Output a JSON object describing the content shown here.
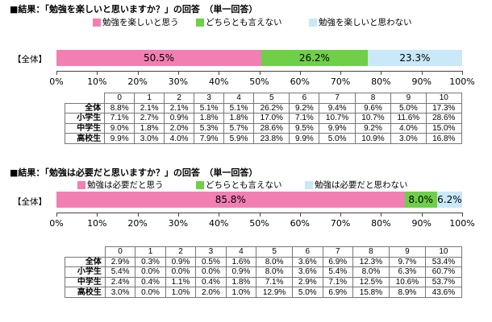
{
  "colors": {
    "positive": "#f27fb2",
    "neutral": "#6fcf48",
    "negative": "#c9e8f8"
  },
  "charts": [
    {
      "title": "■結果：「勉強を楽しいと思いますか？」の回答　（単一回答）",
      "legend": [
        "勉強を楽しいと思う",
        "どちらとも言えない",
        "勉強を楽しいと思わない"
      ],
      "row_label": "【全体】",
      "table_columns": [
        "0",
        "1",
        "2",
        "3",
        "4",
        "5",
        "6",
        "7",
        "8",
        "9",
        "10"
      ],
      "table_rows": [
        {
          "label": "全体",
          "cells": [
            "8.8%",
            "2.1%",
            "2.1%",
            "5.1%",
            "5.1%",
            "26.2%",
            "9.2%",
            "9.4%",
            "9.6%",
            "5.0%",
            "17.3%"
          ]
        },
        {
          "label": "小学生",
          "cells": [
            "7.1%",
            "2.7%",
            "0.9%",
            "1.8%",
            "1.8%",
            "17.0%",
            "7.1%",
            "10.7%",
            "10.7%",
            "11.6%",
            "28.6%"
          ]
        },
        {
          "label": "中学生",
          "cells": [
            "9.0%",
            "1.8%",
            "2.0%",
            "5.3%",
            "5.7%",
            "28.6%",
            "9.5%",
            "9.9%",
            "9.2%",
            "4.0%",
            "15.0%"
          ]
        },
        {
          "label": "高校生",
          "cells": [
            "9.9%",
            "3.0%",
            "4.0%",
            "7.9%",
            "5.9%",
            "23.8%",
            "9.9%",
            "5.0%",
            "10.9%",
            "3.0%",
            "16.8%"
          ]
        }
      ]
    },
    {
      "title": "■結果：「勉強は必要だと思いますか？」の回答　（単一回答）",
      "legend": [
        "勉強は必要だと思う",
        "どちらとも言えない",
        "勉強は必要だと思わない"
      ],
      "row_label": "【全体】",
      "table_columns": [
        "0",
        "1",
        "2",
        "3",
        "4",
        "5",
        "6",
        "7",
        "8",
        "9",
        "10"
      ],
      "table_rows": [
        {
          "label": "全体",
          "cells": [
            "2.9%",
            "0.3%",
            "0.9%",
            "0.5%",
            "1.6%",
            "8.0%",
            "3.6%",
            "6.9%",
            "12.3%",
            "9.7%",
            "53.4%"
          ]
        },
        {
          "label": "小学生",
          "cells": [
            "5.4%",
            "0.0%",
            "0.0%",
            "0.0%",
            "0.9%",
            "8.0%",
            "3.6%",
            "5.4%",
            "8.0%",
            "6.3%",
            "60.7%"
          ]
        },
        {
          "label": "中学生",
          "cells": [
            "2.4%",
            "0.4%",
            "1.1%",
            "0.4%",
            "1.8%",
            "7.1%",
            "2.9%",
            "7.1%",
            "12.5%",
            "10.6%",
            "53.7%"
          ]
        },
        {
          "label": "高校生",
          "cells": [
            "3.0%",
            "0.0%",
            "1.0%",
            "2.0%",
            "1.0%",
            "12.9%",
            "5.0%",
            "6.9%",
            "15.8%",
            "8.9%",
            "43.6%"
          ]
        }
      ]
    }
  ],
  "chart_data": [
    {
      "type": "bar",
      "orientation": "horizontal-stacked",
      "title": "■結果：「勉強を楽しいと思いますか？」の回答　（単一回答）",
      "categories": [
        "【全体】"
      ],
      "series": [
        {
          "name": "勉強を楽しいと思う",
          "values": [
            50.5
          ],
          "label": "50.5%"
        },
        {
          "name": "どちらとも言えない",
          "values": [
            26.2
          ],
          "label": "26.2%"
        },
        {
          "name": "勉強を楽しいと思わない",
          "values": [
            23.3
          ],
          "label": "23.3%"
        }
      ],
      "xlim": [
        0,
        100
      ],
      "xticks": [
        "0%",
        "10%",
        "20%",
        "30%",
        "40%",
        "50%",
        "60%",
        "70%",
        "80%",
        "90%",
        "100%"
      ],
      "legend_position": "top"
    },
    {
      "type": "bar",
      "orientation": "horizontal-stacked",
      "title": "■結果：「勉強は必要だと思いますか？」の回答　（単一回答）",
      "categories": [
        "【全体】"
      ],
      "series": [
        {
          "name": "勉強は必要だと思う",
          "values": [
            85.8
          ],
          "label": "85.8%"
        },
        {
          "name": "どちらとも言えない",
          "values": [
            8.0
          ],
          "label": "8.0%"
        },
        {
          "name": "勉強は必要だと思わない",
          "values": [
            6.2
          ],
          "label": "6.2%"
        }
      ],
      "xlim": [
        0,
        100
      ],
      "xticks": [
        "0%",
        "10%",
        "20%",
        "30%",
        "40%",
        "50%",
        "60%",
        "70%",
        "80%",
        "90%",
        "100%"
      ],
      "legend_position": "top"
    }
  ]
}
